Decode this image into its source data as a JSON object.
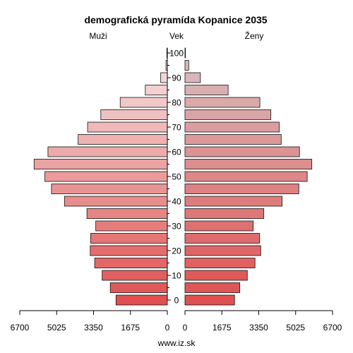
{
  "chart_data": {
    "type": "bar",
    "orientation": "horizontal",
    "layout": "population-pyramid",
    "title": "demografická pyramída Kopanice 2035",
    "left_label": "Muži",
    "center_label": "Vek",
    "right_label": "Ženy",
    "footer": "www.iz.sk",
    "xlim": [
      0,
      6700
    ],
    "x_ticks": [
      6700,
      5025,
      3350,
      1675,
      0
    ],
    "x_tick_labels_left": [
      "6700",
      "5025",
      "3350",
      "1675",
      "0"
    ],
    "x_tick_labels_right": [
      "0",
      "1675",
      "3350",
      "5025",
      "6700"
    ],
    "age_ticks": [
      0,
      10,
      20,
      30,
      40,
      50,
      60,
      70,
      80,
      90,
      100
    ],
    "age_tick_labels": [
      "0",
      "10",
      "20",
      "30",
      "40",
      "50",
      "60",
      "70",
      "80",
      "90",
      "100"
    ],
    "age_groups": [
      "0-4",
      "5-9",
      "10-14",
      "15-19",
      "20-24",
      "25-29",
      "30-34",
      "35-39",
      "40-44",
      "45-49",
      "50-54",
      "55-59",
      "60-64",
      "65-69",
      "70-74",
      "75-79",
      "80-84",
      "85-89",
      "90-94",
      "95-99",
      "100+"
    ],
    "series": [
      {
        "name": "Muži",
        "side": "left",
        "values": [
          2330,
          2590,
          2960,
          3300,
          3500,
          3480,
          3250,
          3650,
          4670,
          5260,
          5560,
          6050,
          5420,
          4050,
          3620,
          3020,
          2140,
          1000,
          300,
          60,
          20
        ]
      },
      {
        "name": "Ženy",
        "side": "right",
        "values": [
          2250,
          2490,
          2830,
          3180,
          3440,
          3390,
          3100,
          3580,
          4410,
          5170,
          5550,
          5760,
          5200,
          4370,
          4280,
          3900,
          3400,
          1960,
          700,
          170,
          20
        ]
      }
    ],
    "colors": {
      "young_fill": "#e05050",
      "old_fill_left": "#f5e6e6",
      "old_fill_right": "#d8c0c2",
      "bar_stroke": "#111111",
      "axis": "#000000"
    }
  }
}
